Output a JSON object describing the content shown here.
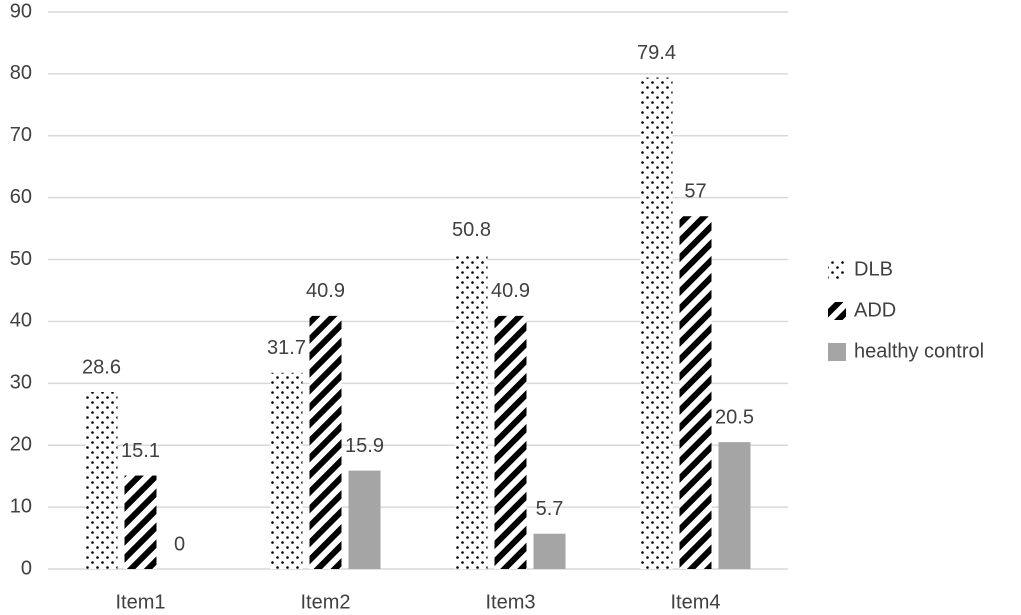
{
  "chart_data": {
    "type": "bar",
    "categories": [
      "Item1",
      "Item2",
      "Item3",
      "Item4"
    ],
    "series": [
      {
        "name": "DLB",
        "color": "#000000",
        "pattern": "dots",
        "values": [
          28.6,
          31.7,
          50.8,
          79.4
        ]
      },
      {
        "name": "ADD",
        "color": "#000000",
        "pattern": "stripes",
        "values": [
          15.1,
          40.9,
          40.9,
          57
        ]
      },
      {
        "name": "healthy control",
        "color": "#a5a5a5",
        "pattern": "solid",
        "values": [
          0,
          15.9,
          5.7,
          20.5
        ]
      }
    ],
    "ylim": [
      0,
      90
    ],
    "yticks": [
      0,
      10,
      20,
      30,
      40,
      50,
      60,
      70,
      80,
      90
    ],
    "grid": true,
    "legend": "right"
  }
}
